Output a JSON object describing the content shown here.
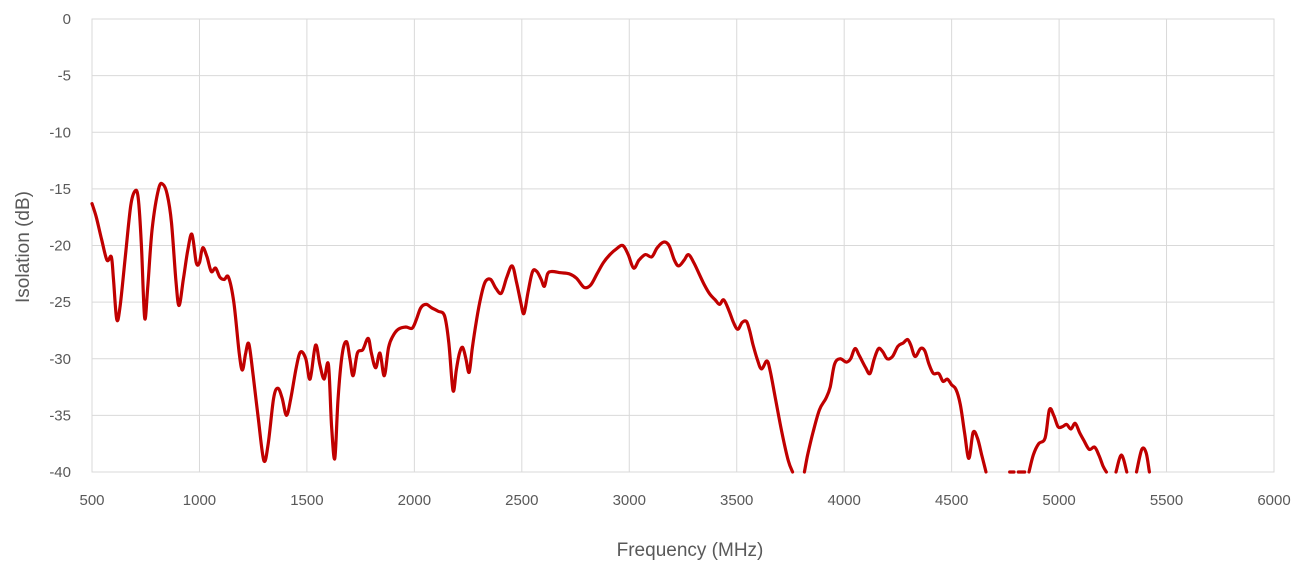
{
  "chart_data": {
    "type": "line",
    "title": "",
    "xlabel": "Frequency (MHz)",
    "ylabel": "Isolation (dB)",
    "xlim": [
      500,
      6000
    ],
    "ylim": [
      -40,
      0
    ],
    "x_ticks": [
      500,
      1000,
      1500,
      2000,
      2500,
      3000,
      3500,
      4000,
      4500,
      5000,
      5500,
      6000
    ],
    "y_ticks": [
      0,
      -5,
      -10,
      -15,
      -20,
      -25,
      -30,
      -35,
      -40
    ],
    "grid": true,
    "legend": "none",
    "colors": {
      "series": "#c00000",
      "grid": "#d9d9d9",
      "text": "#595959"
    },
    "series": [
      {
        "values": [
          [
            500,
            -16.3
          ],
          [
            520,
            -17.5
          ],
          [
            545,
            -19.5
          ],
          [
            570,
            -21.3
          ],
          [
            590,
            -21.0
          ],
          [
            600,
            -23.0
          ],
          [
            615,
            -26.5
          ],
          [
            630,
            -25.5
          ],
          [
            655,
            -21.0
          ],
          [
            680,
            -16.5
          ],
          [
            700,
            -15.2
          ],
          [
            715,
            -15.8
          ],
          [
            730,
            -20.0
          ],
          [
            745,
            -26.4
          ],
          [
            760,
            -23.5
          ],
          [
            780,
            -18.5
          ],
          [
            810,
            -15.0
          ],
          [
            830,
            -14.6
          ],
          [
            850,
            -15.5
          ],
          [
            870,
            -18.0
          ],
          [
            890,
            -23.0
          ],
          [
            905,
            -25.3
          ],
          [
            925,
            -23.0
          ],
          [
            945,
            -20.5
          ],
          [
            965,
            -19.0
          ],
          [
            985,
            -21.5
          ],
          [
            1000,
            -21.5
          ],
          [
            1015,
            -20.2
          ],
          [
            1035,
            -21.0
          ],
          [
            1055,
            -22.3
          ],
          [
            1075,
            -22.0
          ],
          [
            1095,
            -22.8
          ],
          [
            1115,
            -23.0
          ],
          [
            1135,
            -22.8
          ],
          [
            1160,
            -25.0
          ],
          [
            1185,
            -29.5
          ],
          [
            1200,
            -31.0
          ],
          [
            1215,
            -29.5
          ],
          [
            1230,
            -28.7
          ],
          [
            1250,
            -31.5
          ],
          [
            1275,
            -35.5
          ],
          [
            1300,
            -39.0
          ],
          [
            1320,
            -37.5
          ],
          [
            1345,
            -33.5
          ],
          [
            1365,
            -32.6
          ],
          [
            1385,
            -33.5
          ],
          [
            1405,
            -35.0
          ],
          [
            1425,
            -33.5
          ],
          [
            1450,
            -30.8
          ],
          [
            1470,
            -29.4
          ],
          [
            1495,
            -30.0
          ],
          [
            1515,
            -31.8
          ],
          [
            1540,
            -28.8
          ],
          [
            1560,
            -30.5
          ],
          [
            1580,
            -31.8
          ],
          [
            1600,
            -30.5
          ],
          [
            1615,
            -36.0
          ],
          [
            1630,
            -38.8
          ],
          [
            1645,
            -33.5
          ],
          [
            1665,
            -29.5
          ],
          [
            1685,
            -28.5
          ],
          [
            1700,
            -30.0
          ],
          [
            1715,
            -31.5
          ],
          [
            1735,
            -29.5
          ],
          [
            1760,
            -29.2
          ],
          [
            1785,
            -28.2
          ],
          [
            1800,
            -29.5
          ],
          [
            1820,
            -30.8
          ],
          [
            1840,
            -29.5
          ],
          [
            1860,
            -31.5
          ],
          [
            1880,
            -29.0
          ],
          [
            1900,
            -28.0
          ],
          [
            1925,
            -27.4
          ],
          [
            1960,
            -27.2
          ],
          [
            1990,
            -27.3
          ],
          [
            2010,
            -26.5
          ],
          [
            2030,
            -25.5
          ],
          [
            2055,
            -25.2
          ],
          [
            2080,
            -25.5
          ],
          [
            2110,
            -25.8
          ],
          [
            2140,
            -26.2
          ],
          [
            2160,
            -28.5
          ],
          [
            2180,
            -32.8
          ],
          [
            2195,
            -31.0
          ],
          [
            2210,
            -29.5
          ],
          [
            2225,
            -29.0
          ],
          [
            2240,
            -30.0
          ],
          [
            2255,
            -31.2
          ],
          [
            2270,
            -29.0
          ],
          [
            2290,
            -26.5
          ],
          [
            2310,
            -24.5
          ],
          [
            2330,
            -23.2
          ],
          [
            2355,
            -23.0
          ],
          [
            2380,
            -23.8
          ],
          [
            2405,
            -24.2
          ],
          [
            2430,
            -22.8
          ],
          [
            2455,
            -21.8
          ],
          [
            2475,
            -23.2
          ],
          [
            2495,
            -25.0
          ],
          [
            2510,
            -26.0
          ],
          [
            2530,
            -24.0
          ],
          [
            2550,
            -22.3
          ],
          [
            2570,
            -22.3
          ],
          [
            2590,
            -23.0
          ],
          [
            2605,
            -23.6
          ],
          [
            2620,
            -22.5
          ],
          [
            2640,
            -22.3
          ],
          [
            2680,
            -22.4
          ],
          [
            2720,
            -22.5
          ],
          [
            2755,
            -22.9
          ],
          [
            2790,
            -23.7
          ],
          [
            2820,
            -23.5
          ],
          [
            2850,
            -22.5
          ],
          [
            2880,
            -21.5
          ],
          [
            2910,
            -20.8
          ],
          [
            2940,
            -20.3
          ],
          [
            2970,
            -20.0
          ],
          [
            2995,
            -20.8
          ],
          [
            3020,
            -22.0
          ],
          [
            3045,
            -21.3
          ],
          [
            3075,
            -20.8
          ],
          [
            3105,
            -21.0
          ],
          [
            3130,
            -20.2
          ],
          [
            3160,
            -19.7
          ],
          [
            3185,
            -20.0
          ],
          [
            3210,
            -21.3
          ],
          [
            3230,
            -21.8
          ],
          [
            3255,
            -21.3
          ],
          [
            3275,
            -20.8
          ],
          [
            3300,
            -21.5
          ],
          [
            3325,
            -22.5
          ],
          [
            3350,
            -23.5
          ],
          [
            3375,
            -24.3
          ],
          [
            3400,
            -24.8
          ],
          [
            3420,
            -25.2
          ],
          [
            3440,
            -24.8
          ],
          [
            3465,
            -25.8
          ],
          [
            3485,
            -26.8
          ],
          [
            3505,
            -27.4
          ],
          [
            3525,
            -26.8
          ],
          [
            3545,
            -26.7
          ],
          [
            3560,
            -27.5
          ],
          [
            3575,
            -28.7
          ],
          [
            3595,
            -30.0
          ],
          [
            3615,
            -30.9
          ],
          [
            3640,
            -30.2
          ],
          [
            3655,
            -31.0
          ],
          [
            3680,
            -33.5
          ],
          [
            3710,
            -36.5
          ],
          [
            3740,
            -39.0
          ],
          [
            3760,
            -40.0
          ],
          [
            null,
            null
          ],
          [
            3815,
            -40.0
          ],
          [
            3830,
            -38.5
          ],
          [
            3855,
            -36.5
          ],
          [
            3885,
            -34.5
          ],
          [
            3915,
            -33.5
          ],
          [
            3935,
            -32.5
          ],
          [
            3955,
            -30.5
          ],
          [
            3980,
            -30.0
          ],
          [
            4010,
            -30.3
          ],
          [
            4030,
            -30.0
          ],
          [
            4050,
            -29.1
          ],
          [
            4070,
            -29.7
          ],
          [
            4100,
            -30.8
          ],
          [
            4120,
            -31.3
          ],
          [
            4140,
            -30.0
          ],
          [
            4160,
            -29.1
          ],
          [
            4180,
            -29.4
          ],
          [
            4200,
            -30.0
          ],
          [
            4225,
            -29.8
          ],
          [
            4250,
            -28.9
          ],
          [
            4275,
            -28.6
          ],
          [
            4295,
            -28.3
          ],
          [
            4310,
            -28.8
          ],
          [
            4330,
            -29.8
          ],
          [
            4355,
            -29.1
          ],
          [
            4375,
            -29.3
          ],
          [
            4395,
            -30.5
          ],
          [
            4415,
            -31.3
          ],
          [
            4440,
            -31.3
          ],
          [
            4460,
            -32.0
          ],
          [
            4480,
            -31.8
          ],
          [
            4500,
            -32.3
          ],
          [
            4520,
            -32.7
          ],
          [
            4540,
            -34.0
          ],
          [
            4560,
            -36.5
          ],
          [
            4580,
            -38.8
          ],
          [
            4600,
            -36.5
          ],
          [
            4620,
            -37.0
          ],
          [
            4640,
            -38.5
          ],
          [
            4660,
            -40.0
          ],
          [
            null,
            null
          ],
          [
            4770,
            -40.0
          ],
          [
            4790,
            -40.0
          ],
          [
            null,
            null
          ],
          [
            4810,
            -40.0
          ],
          [
            4840,
            -40.0
          ],
          [
            null,
            null
          ],
          [
            4860,
            -40.0
          ],
          [
            4880,
            -38.5
          ],
          [
            4905,
            -37.5
          ],
          [
            4935,
            -37.0
          ],
          [
            4955,
            -34.5
          ],
          [
            4975,
            -35.0
          ],
          [
            4995,
            -36.0
          ],
          [
            5015,
            -36.0
          ],
          [
            5035,
            -35.8
          ],
          [
            5055,
            -36.2
          ],
          [
            5075,
            -35.7
          ],
          [
            5095,
            -36.5
          ],
          [
            5115,
            -37.2
          ],
          [
            5140,
            -38.0
          ],
          [
            5165,
            -37.8
          ],
          [
            5185,
            -38.5
          ],
          [
            5205,
            -39.5
          ],
          [
            5220,
            -40.0
          ],
          [
            null,
            null
          ],
          [
            5265,
            -40.0
          ],
          [
            5290,
            -38.5
          ],
          [
            5315,
            -40.0
          ],
          [
            null,
            null
          ],
          [
            5360,
            -40.0
          ],
          [
            5385,
            -38.0
          ],
          [
            5405,
            -38.3
          ],
          [
            5420,
            -40.0
          ]
        ]
      }
    ]
  }
}
